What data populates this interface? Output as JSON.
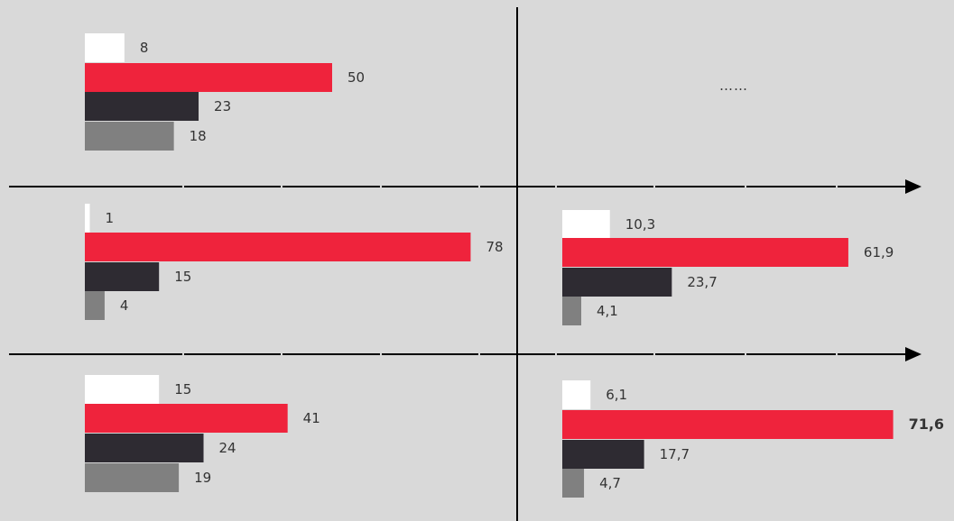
{
  "chart_data": {
    "type": "bar",
    "orientation": "horizontal",
    "series_colors": [
      "#ffffff",
      "#ef233c",
      "#2e2b32",
      "#808080"
    ],
    "axis_color": "#000000",
    "background": "#d9d9d9",
    "panels": [
      {
        "id": "top-left",
        "values": [
          8,
          50,
          23,
          18
        ],
        "labels": [
          "8",
          "50",
          "23",
          "18"
        ]
      },
      {
        "id": "top-right",
        "placeholder": "……"
      },
      {
        "id": "middle-left",
        "values": [
          1,
          78,
          15,
          4
        ],
        "labels": [
          "1",
          "78",
          "15",
          "4"
        ]
      },
      {
        "id": "middle-right",
        "values": [
          10.3,
          61.9,
          23.7,
          4.1
        ],
        "labels": [
          "10,3",
          "61,9",
          "23,7",
          "4,1"
        ]
      },
      {
        "id": "bottom-left",
        "values": [
          15,
          41,
          24,
          19
        ],
        "labels": [
          "15",
          "41",
          "24",
          "19"
        ]
      },
      {
        "id": "bottom-right",
        "values": [
          6.1,
          71.6,
          17.7,
          4.7
        ],
        "labels": [
          "6,1",
          "71,6",
          "17,7",
          "4,7"
        ],
        "emphasized_label_index": 1
      }
    ]
  }
}
